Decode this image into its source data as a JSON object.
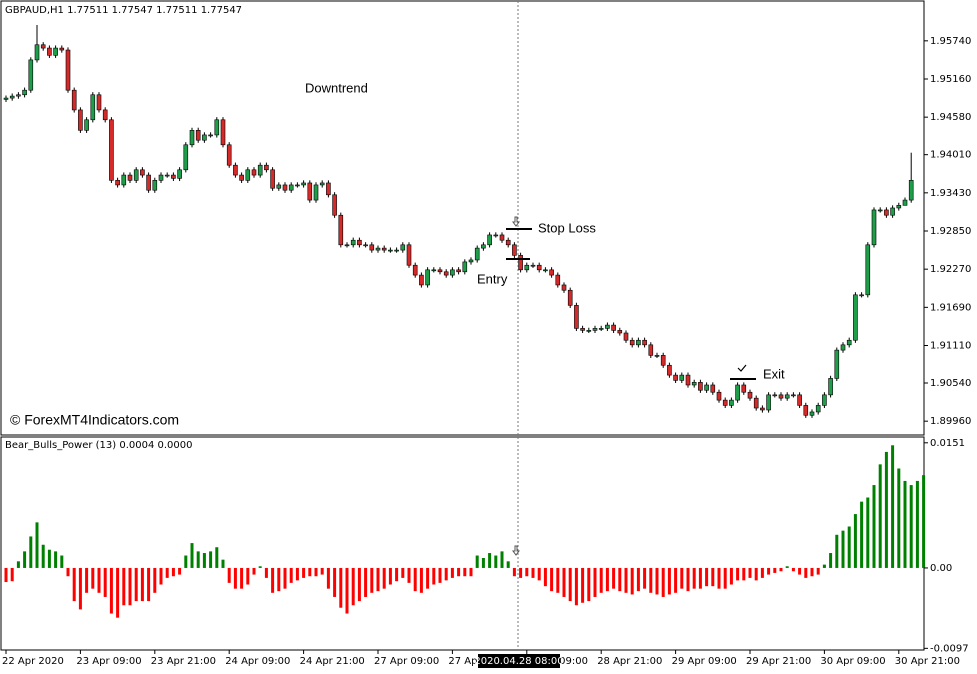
{
  "chart_data": [
    {
      "type": "candlestick",
      "title": "GBPAUD,H1  1.77511 1.77547 1.77511 1.77547",
      "watermark": "© ForexMT4Indicators.com",
      "annotations": [
        "Downtrend",
        "Stop Loss",
        "Entry",
        "Exit"
      ],
      "crosshair_label": "2020.04.28 08:00",
      "up_color": "#1f9e4a",
      "down_color": "#d42a2a",
      "ylim": [
        1.8975,
        1.9633
      ],
      "yticks": [
        {
          "value": 1.9574,
          "label": "1.95740"
        },
        {
          "value": 1.9516,
          "label": "1.95160"
        },
        {
          "value": 1.9458,
          "label": "1.94580"
        },
        {
          "value": 1.9401,
          "label": "1.94010"
        },
        {
          "value": 1.9343,
          "label": "1.93430"
        },
        {
          "value": 1.9285,
          "label": "1.92850"
        },
        {
          "value": 1.9227,
          "label": "1.92270"
        },
        {
          "value": 1.9169,
          "label": "1.91690"
        },
        {
          "value": 1.9111,
          "label": "1.91110"
        },
        {
          "value": 1.9054,
          "label": "1.90540"
        },
        {
          "value": 1.8996,
          "label": "1.89960"
        }
      ],
      "categories": [
        "22 Apr 2020",
        null,
        null,
        null,
        null,
        null,
        null,
        null,
        null,
        null,
        null,
        null,
        "23 Apr 09:00",
        null,
        null,
        null,
        null,
        null,
        null,
        null,
        null,
        null,
        null,
        null,
        "23 Apr 21:00",
        null,
        null,
        null,
        null,
        null,
        null,
        null,
        null,
        null,
        null,
        null,
        "24 Apr 09:00",
        null,
        null,
        null,
        null,
        null,
        null,
        null,
        null,
        null,
        null,
        null,
        "24 Apr 21:00",
        null,
        null,
        null,
        null,
        null,
        null,
        null,
        null,
        null,
        null,
        null,
        "27 Apr 09:00",
        null,
        null,
        null,
        null,
        null,
        null,
        null,
        null,
        null,
        null,
        null,
        "27 Apr 21:00",
        null,
        null,
        null,
        null,
        null,
        null,
        null,
        null,
        null,
        null,
        null,
        "28 Apr 09:00",
        null,
        null,
        null,
        null,
        null,
        null,
        null,
        null,
        null,
        null,
        null,
        "28 Apr 21:00",
        null,
        null,
        null,
        null,
        null,
        null,
        null,
        null,
        null,
        null,
        null,
        "29 Apr 09:00",
        null,
        null,
        null,
        null,
        null,
        null,
        null,
        null,
        null,
        null,
        null,
        "29 Apr 21:00",
        null,
        null,
        null,
        null,
        null,
        null,
        null,
        null,
        null,
        null,
        null,
        "30 Apr 09:00",
        null,
        null,
        null,
        null,
        null,
        null,
        null,
        null,
        null,
        null,
        null,
        "30 Apr 21:00",
        null,
        null
      ],
      "open": [
        1.9485,
        1.9487,
        1.949,
        1.9492,
        1.9499,
        1.9545,
        1.9568,
        1.9563,
        1.9552,
        1.9563,
        1.956,
        1.9499,
        1.9469,
        1.9438,
        1.9454,
        1.9492,
        1.9469,
        1.9454,
        1.9362,
        1.9355,
        1.937,
        1.9362,
        1.9378,
        1.937,
        1.9347,
        1.9362,
        1.937,
        1.937,
        1.9365,
        1.9378,
        1.9416,
        1.9438,
        1.9423,
        1.9431,
        1.9431,
        1.9454,
        1.9416,
        1.9385,
        1.937,
        1.9362,
        1.9378,
        1.937,
        1.9385,
        1.9378,
        1.935,
        1.9355,
        1.9347,
        1.9355,
        1.9355,
        1.9358,
        1.9332,
        1.9355,
        1.9358,
        1.934,
        1.9309,
        1.9264,
        1.9264,
        1.9271,
        1.9264,
        1.9264,
        1.9256,
        1.9259,
        1.9256,
        1.9256,
        1.9256,
        1.9264,
        1.9233,
        1.9218,
        1.9203,
        1.9226,
        1.9226,
        1.9223,
        1.9218,
        1.9226,
        1.9223,
        1.9238,
        1.9241,
        1.9259,
        1.9264,
        1.9279,
        1.9279,
        1.9271,
        1.9264,
        1.9248,
        1.9226,
        1.9233,
        1.9233,
        1.9226,
        1.9226,
        1.9218,
        1.9203,
        1.9195,
        1.9172,
        1.9137,
        1.9134,
        1.9134,
        1.9137,
        1.9137,
        1.9142,
        1.9134,
        1.913,
        1.9119,
        1.9112,
        1.9119,
        1.9112,
        1.9096,
        1.9096,
        1.9081,
        1.9066,
        1.9058,
        1.9066,
        1.9051,
        1.9055,
        1.9043,
        1.9051,
        1.904,
        1.9028,
        1.902,
        1.9028,
        1.9051,
        1.904,
        1.9031,
        1.9016,
        1.9013,
        1.9036,
        1.9036,
        1.9031,
        1.9036,
        1.9036,
        1.902,
        1.9005,
        1.901,
        1.902,
        1.9036,
        1.9061,
        1.9104,
        1.9112,
        1.9119,
        1.9188,
        1.9188,
        1.9264,
        1.9317,
        1.9317,
        1.9309,
        1.932,
        1.9324,
        1.9332
      ],
      "high": [
        1.9491,
        1.9494,
        1.9496,
        1.9503,
        1.9549,
        1.9598,
        1.9572,
        1.9567,
        1.9567,
        1.9567,
        1.9564,
        1.9503,
        1.9473,
        1.9458,
        1.9496,
        1.9496,
        1.9473,
        1.9458,
        1.9366,
        1.9374,
        1.9374,
        1.9382,
        1.9382,
        1.9374,
        1.9366,
        1.9374,
        1.9374,
        1.9374,
        1.9382,
        1.942,
        1.9442,
        1.9442,
        1.9435,
        1.9435,
        1.9458,
        1.9458,
        1.942,
        1.9389,
        1.9374,
        1.9382,
        1.9382,
        1.9389,
        1.9389,
        1.9382,
        1.9359,
        1.9359,
        1.9359,
        1.9359,
        1.9362,
        1.9362,
        1.9359,
        1.9362,
        1.9362,
        1.9344,
        1.9313,
        1.9268,
        1.9275,
        1.9275,
        1.9268,
        1.9268,
        1.9263,
        1.9263,
        1.926,
        1.926,
        1.9268,
        1.9268,
        1.9237,
        1.9222,
        1.923,
        1.923,
        1.923,
        1.9227,
        1.923,
        1.923,
        1.9242,
        1.9245,
        1.9263,
        1.9268,
        1.9283,
        1.9283,
        1.9283,
        1.9275,
        1.9268,
        1.9252,
        1.9237,
        1.9237,
        1.9237,
        1.923,
        1.923,
        1.9222,
        1.9207,
        1.9199,
        1.9176,
        1.9141,
        1.9138,
        1.9141,
        1.9141,
        1.9146,
        1.9146,
        1.9138,
        1.9134,
        1.9123,
        1.9123,
        1.9123,
        1.9116,
        1.91,
        1.91,
        1.9085,
        1.907,
        1.907,
        1.907,
        1.9059,
        1.9059,
        1.9055,
        1.9055,
        1.9044,
        1.9032,
        1.9032,
        1.9055,
        1.9055,
        1.9044,
        1.9035,
        1.902,
        1.904,
        1.904,
        1.904,
        1.904,
        1.904,
        1.904,
        1.9024,
        1.9014,
        1.9024,
        1.904,
        1.9065,
        1.9108,
        1.9116,
        1.9123,
        1.9192,
        1.9192,
        1.9268,
        1.9321,
        1.9321,
        1.9321,
        1.9324,
        1.9328,
        1.9336,
        1.9404
      ],
      "low": [
        1.9481,
        1.9483,
        1.9486,
        1.9488,
        1.9495,
        1.9541,
        1.9559,
        1.9548,
        1.9548,
        1.9556,
        1.9495,
        1.9465,
        1.9434,
        1.9434,
        1.945,
        1.9465,
        1.945,
        1.9358,
        1.9351,
        1.9351,
        1.9358,
        1.9358,
        1.9366,
        1.9343,
        1.9343,
        1.9358,
        1.9366,
        1.9361,
        1.9361,
        1.9374,
        1.9412,
        1.9419,
        1.9419,
        1.9427,
        1.9427,
        1.9412,
        1.9381,
        1.9366,
        1.9358,
        1.9358,
        1.9366,
        1.9366,
        1.9374,
        1.9346,
        1.9346,
        1.9343,
        1.9343,
        1.9351,
        1.9351,
        1.9328,
        1.9328,
        1.9351,
        1.9336,
        1.9305,
        1.926,
        1.926,
        1.926,
        1.926,
        1.926,
        1.9252,
        1.9252,
        1.9252,
        1.9252,
        1.9252,
        1.9252,
        1.9229,
        1.9214,
        1.9199,
        1.9199,
        1.9222,
        1.9219,
        1.9214,
        1.9214,
        1.9219,
        1.9219,
        1.9234,
        1.9237,
        1.9255,
        1.926,
        1.9275,
        1.9267,
        1.926,
        1.9244,
        1.9222,
        1.9222,
        1.9229,
        1.9222,
        1.9222,
        1.9214,
        1.9199,
        1.9191,
        1.9168,
        1.9133,
        1.913,
        1.913,
        1.913,
        1.9133,
        1.9133,
        1.913,
        1.9126,
        1.9115,
        1.9108,
        1.9108,
        1.9108,
        1.9092,
        1.9092,
        1.9077,
        1.9062,
        1.9054,
        1.9054,
        1.9047,
        1.9047,
        1.9039,
        1.9039,
        1.9036,
        1.9024,
        1.9016,
        1.9016,
        1.9024,
        1.9036,
        1.9027,
        1.9012,
        1.9009,
        1.9009,
        1.9032,
        1.9027,
        1.9027,
        1.9032,
        1.9016,
        1.9001,
        1.9001,
        1.9006,
        1.9016,
        1.9032,
        1.9057,
        1.91,
        1.9108,
        1.9115,
        1.9184,
        1.9184,
        1.926,
        1.9313,
        1.9305,
        1.9305,
        1.9316,
        1.9328,
        1.9328
      ],
      "close": [
        1.9487,
        1.949,
        1.9492,
        1.9499,
        1.9545,
        1.9568,
        1.9563,
        1.9552,
        1.9563,
        1.956,
        1.9499,
        1.9469,
        1.9438,
        1.9454,
        1.9492,
        1.9469,
        1.9454,
        1.9362,
        1.9355,
        1.937,
        1.9362,
        1.9378,
        1.937,
        1.9347,
        1.9362,
        1.937,
        1.937,
        1.9365,
        1.9378,
        1.9416,
        1.9438,
        1.9423,
        1.9431,
        1.9431,
        1.9454,
        1.9416,
        1.9385,
        1.937,
        1.9362,
        1.9378,
        1.937,
        1.9385,
        1.9378,
        1.935,
        1.9355,
        1.9347,
        1.9355,
        1.9355,
        1.9358,
        1.9332,
        1.9355,
        1.9358,
        1.934,
        1.9309,
        1.9264,
        1.9264,
        1.9271,
        1.9264,
        1.9264,
        1.9256,
        1.9259,
        1.9256,
        1.9256,
        1.9256,
        1.9264,
        1.9233,
        1.9218,
        1.9203,
        1.9226,
        1.9226,
        1.9223,
        1.9218,
        1.9226,
        1.9223,
        1.9238,
        1.9241,
        1.9259,
        1.9264,
        1.9279,
        1.9279,
        1.9271,
        1.9264,
        1.9248,
        1.9226,
        1.9233,
        1.9233,
        1.9226,
        1.9226,
        1.9218,
        1.9203,
        1.9195,
        1.9172,
        1.9137,
        1.9134,
        1.9134,
        1.9137,
        1.9137,
        1.9142,
        1.9134,
        1.913,
        1.9119,
        1.9112,
        1.9119,
        1.9112,
        1.9096,
        1.9096,
        1.9081,
        1.9066,
        1.9058,
        1.9066,
        1.9051,
        1.9055,
        1.9043,
        1.9051,
        1.904,
        1.9028,
        1.902,
        1.9028,
        1.9051,
        1.904,
        1.9031,
        1.9016,
        1.9013,
        1.9036,
        1.9036,
        1.9031,
        1.9036,
        1.9036,
        1.902,
        1.9005,
        1.901,
        1.902,
        1.9036,
        1.9061,
        1.9104,
        1.9112,
        1.9119,
        1.9188,
        1.9188,
        1.9264,
        1.9317,
        1.9317,
        1.9309,
        1.932,
        1.9324,
        1.9332,
        1.9362
      ]
    },
    {
      "type": "histogram-bar",
      "title": "Bear_Bulls_Power (13)  0.0004 0.0000",
      "positive_color": "#008000",
      "negative_color": "#ff0000",
      "ylim": [
        -0.0099,
        0.0158
      ],
      "yticks": [
        0.0151,
        {
          "value": 0,
          "label": "0.00"
        },
        -0.0097
      ],
      "values": [
        -0.0017,
        -0.0016,
        0.0008,
        0.002,
        0.0038,
        0.0055,
        0.0028,
        0.0022,
        0.002,
        0.0015,
        -0.001,
        -0.004,
        -0.005,
        -0.003,
        -0.0025,
        -0.003,
        -0.0035,
        -0.0055,
        -0.006,
        -0.0045,
        -0.0045,
        -0.004,
        -0.004,
        -0.004,
        -0.003,
        -0.002,
        -0.0012,
        -0.001,
        -0.0008,
        0.0015,
        0.003,
        0.002,
        0.0018,
        0.002,
        0.0025,
        0.001,
        -0.0018,
        -0.0025,
        -0.0025,
        -0.002,
        -0.0008,
        0.0002,
        -0.0012,
        -0.003,
        -0.0028,
        -0.0025,
        -0.0018,
        -0.0015,
        -0.0012,
        -0.001,
        -0.001,
        -0.0008,
        -0.0025,
        -0.0035,
        -0.0048,
        -0.0055,
        -0.0045,
        -0.004,
        -0.0035,
        -0.003,
        -0.0028,
        -0.0025,
        -0.002,
        -0.0016,
        -0.0012,
        -0.0018,
        -0.0028,
        -0.003,
        -0.0025,
        -0.002,
        -0.0018,
        -0.0015,
        -0.0012,
        -0.001,
        -0.001,
        -0.001,
        0.0015,
        0.0012,
        0.0018,
        0.0015,
        0.002,
        0.0008,
        -0.001,
        -0.0012,
        -0.001,
        -0.0012,
        -0.0015,
        -0.0022,
        -0.0028,
        -0.003,
        -0.0035,
        -0.004,
        -0.0045,
        -0.0042,
        -0.004,
        -0.0035,
        -0.003,
        -0.0028,
        -0.0025,
        -0.0028,
        -0.003,
        -0.0032,
        -0.0028,
        -0.0025,
        -0.003,
        -0.0032,
        -0.0035,
        -0.0032,
        -0.003,
        -0.0025,
        -0.0028,
        -0.0025,
        -0.0025,
        -0.0022,
        -0.0022,
        -0.0025,
        -0.0025,
        -0.002,
        -0.0015,
        -0.0015,
        -0.0012,
        -0.0015,
        -0.0012,
        -0.0008,
        -0.0006,
        -0.0004,
        0.0002,
        -0.0004,
        -0.0008,
        -0.0012,
        -0.001,
        -0.0008,
        0.0004,
        0.0018,
        0.004,
        0.0045,
        0.005,
        0.0065,
        0.008,
        0.0085,
        0.01,
        0.0125,
        0.014,
        0.0148,
        0.012,
        0.0105,
        0.01,
        0.0105,
        0.0112
      ]
    }
  ]
}
